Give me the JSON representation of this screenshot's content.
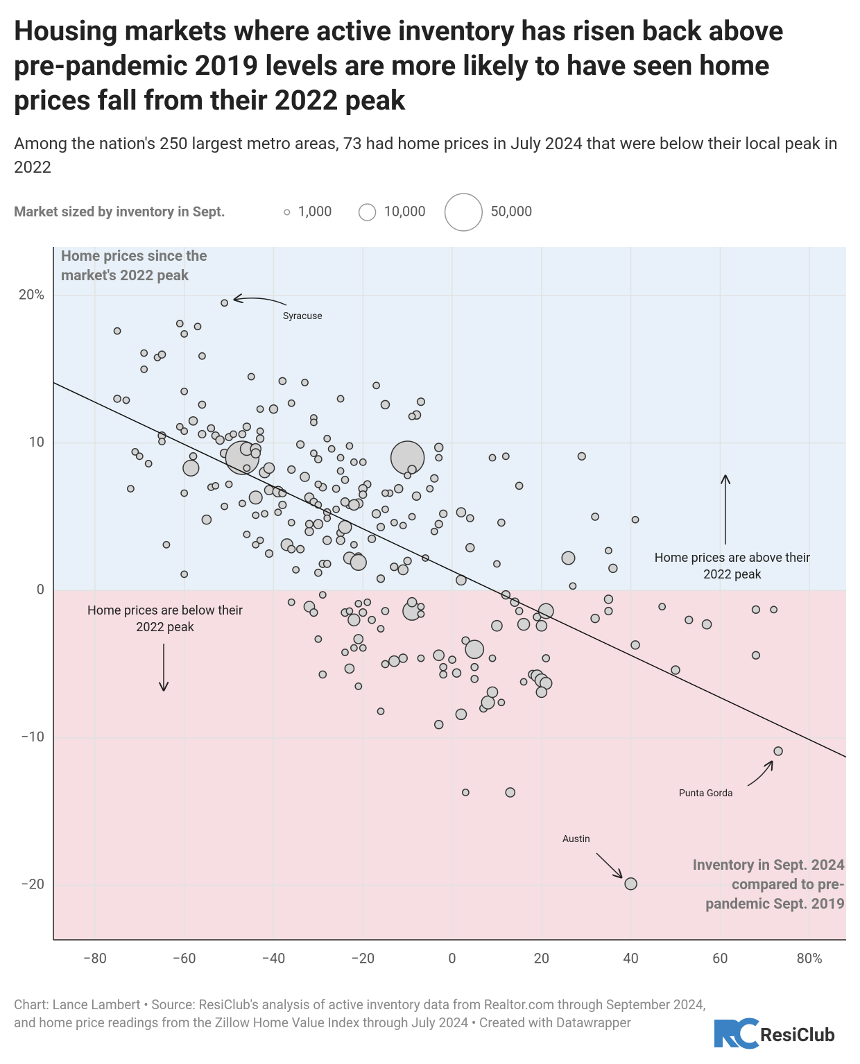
{
  "chart_data": {
    "type": "bubble",
    "title": "Housing markets where active inventory has risen back above pre-pandemic 2019 levels are more likely to have seen home prices fall from their 2022 peak",
    "subtitle": "Among the nation's 250 largest metro areas, 73 had home prices in July 2024 that were below their local peak in 2022",
    "legend_title": "Market sized by inventory in Sept.",
    "legend_sizes": [
      {
        "value": 1000,
        "label": "1,000"
      },
      {
        "value": 10000,
        "label": "10,000"
      },
      {
        "value": 50000,
        "label": "50,000"
      }
    ],
    "y_label": "Home prices since the market's 2022 peak",
    "x_label": "Inventory in Sept. 2024 compared to pre-pandemic Sept. 2019",
    "above_label": "Home prices are above their 2022 peak",
    "below_label": "Home prices are below their 2022 peak",
    "annotations": [
      "Syracuse",
      "Punta Gorda",
      "Austin"
    ],
    "footer": "Chart: Lance Lambert • Source: ResiClub's analysis of active inventory data from Realtor.com through September 2024, and home price readings from the Zillow Home Value Index through July 2024 • Created with Datawrapper",
    "logo": "ResiClub",
    "xlim": [
      -89.3,
      88.2
    ],
    "ylim": [
      -23.7,
      23.3
    ],
    "xticks": [
      {
        "value": -80,
        "label": "−80"
      },
      {
        "value": -60,
        "label": "−60"
      },
      {
        "value": -40,
        "label": "−40"
      },
      {
        "value": -20,
        "label": "−20"
      },
      0,
      20,
      40,
      60,
      {
        "value": 80,
        "label": "80%"
      }
    ],
    "yticks": [
      {
        "value": 20,
        "label": "20%"
      },
      10,
      0,
      {
        "value": -10,
        "label": "−10"
      },
      {
        "value": -20,
        "label": "−20"
      }
    ],
    "grid": true,
    "above_color": "#e8f1f9",
    "below_color": "#f6dee3",
    "color": "#d3d3d3",
    "trendline": {
      "x": [
        -89.3,
        88.2
      ],
      "y": [
        14.1,
        -11.3
      ]
    },
    "points": [
      [
        -51,
        19.5,
        1500
      ],
      [
        -75,
        17.6,
        1500
      ],
      [
        -61,
        18.1,
        1500
      ],
      [
        -60,
        17.4,
        1500
      ],
      [
        -57,
        17.9,
        1500
      ],
      [
        -69,
        16.1,
        1500
      ],
      [
        -66,
        15.8,
        1500
      ],
      [
        -65,
        16,
        1800
      ],
      [
        -69,
        15,
        1500
      ],
      [
        -56,
        15.9,
        1500
      ],
      [
        -75,
        13,
        1800
      ],
      [
        -73,
        12.9,
        1500
      ],
      [
        -60,
        13.5,
        1500
      ],
      [
        -56,
        12.6,
        1800
      ],
      [
        -45,
        14.5,
        1500
      ],
      [
        -38,
        14.2,
        1800
      ],
      [
        -33,
        14.1,
        1500
      ],
      [
        -25,
        13,
        1500
      ],
      [
        -17,
        13.9,
        1500
      ],
      [
        -15,
        12.6,
        2500
      ],
      [
        -7,
        12.8,
        2000
      ],
      [
        -8,
        11.9,
        2500
      ],
      [
        -9,
        11.8,
        1500
      ],
      [
        -58,
        11.5,
        2500
      ],
      [
        -61,
        11.1,
        1500
      ],
      [
        -60,
        10.8,
        1500
      ],
      [
        -54,
        11,
        1800
      ],
      [
        -53,
        10.5,
        2000
      ],
      [
        -52,
        10.2,
        2500
      ],
      [
        -50,
        10.4,
        1800
      ],
      [
        -49,
        10.6,
        1500
      ],
      [
        -47,
        10.6,
        1800
      ],
      [
        -46,
        11.1,
        2000
      ],
      [
        -43,
        12.3,
        1500
      ],
      [
        -40,
        12.3,
        2500
      ],
      [
        -36,
        12.7,
        1500
      ],
      [
        -31,
        11.7,
        1500
      ],
      [
        -31,
        11.4,
        1500
      ],
      [
        -43,
        10.8,
        1500
      ],
      [
        -43,
        10.3,
        2000
      ],
      [
        -65,
        10.5,
        2000
      ],
      [
        -65,
        10.1,
        1500
      ],
      [
        -56,
        10.6,
        2000
      ],
      [
        -51,
        9.3,
        2500
      ],
      [
        -47,
        9,
        40000
      ],
      [
        -46,
        9.6,
        6000
      ],
      [
        -44,
        9.6,
        4000
      ],
      [
        -44,
        9.3,
        3000
      ],
      [
        -58,
        9.1,
        1800
      ],
      [
        -58.5,
        8.3,
        9000
      ],
      [
        -71,
        9.4,
        1500
      ],
      [
        -70,
        9.1,
        1500
      ],
      [
        -68,
        8.6,
        1500
      ],
      [
        -72,
        6.9,
        1500
      ],
      [
        -60,
        6.6,
        1500
      ],
      [
        -54,
        7,
        1500
      ],
      [
        -50,
        7.2,
        1500
      ],
      [
        -46,
        8.3,
        1500
      ],
      [
        -42,
        8,
        4000
      ],
      [
        -41,
        8.3,
        4000
      ],
      [
        -36,
        8.2,
        2000
      ],
      [
        -33,
        7.7,
        3000
      ],
      [
        -30,
        8.9,
        1800
      ],
      [
        -25,
        9,
        1500
      ],
      [
        -20,
        8.7,
        1500
      ],
      [
        -34,
        9.9,
        2000
      ],
      [
        -31,
        9.3,
        1500
      ],
      [
        -28,
        10.3,
        1500
      ],
      [
        -27,
        9.6,
        1500
      ],
      [
        -23,
        9.8,
        1500
      ],
      [
        -22,
        8.7,
        1500
      ],
      [
        -25,
        8.1,
        1500
      ],
      [
        -10,
        9,
        40000
      ],
      [
        -3,
        9.7,
        2500
      ],
      [
        -3,
        9,
        1500
      ],
      [
        -9,
        8.2,
        2500
      ],
      [
        -10,
        7.8,
        1500
      ],
      [
        -4,
        7.6,
        2000
      ],
      [
        -8,
        6.4,
        2500
      ],
      [
        -12,
        6.9,
        2500
      ],
      [
        -14,
        6.6,
        1500
      ],
      [
        -15,
        6.6,
        1500
      ],
      [
        -5,
        6.9,
        1500
      ],
      [
        -47,
        5.9,
        1500
      ],
      [
        -44,
        6.3,
        6000
      ],
      [
        -41,
        6.8,
        3000
      ],
      [
        -39,
        6.7,
        4000
      ],
      [
        -38,
        6.6,
        2000
      ],
      [
        -38,
        5.8,
        2000
      ],
      [
        -39,
        5.3,
        1500
      ],
      [
        -44,
        5.1,
        1500
      ],
      [
        -42,
        5.2,
        1500
      ],
      [
        -51,
        5.7,
        1500
      ],
      [
        -53,
        7.1,
        1500
      ],
      [
        -55,
        4.8,
        3000
      ],
      [
        -32,
        6.3,
        3000
      ],
      [
        -31,
        6,
        2000
      ],
      [
        -30,
        5.8,
        1500
      ],
      [
        -29,
        7,
        2000
      ],
      [
        -30,
        7.2,
        1500
      ],
      [
        -24,
        7.5,
        1800
      ],
      [
        -26,
        6.9,
        1800
      ],
      [
        -19,
        7.2,
        1800
      ],
      [
        -20,
        6.9,
        2500
      ],
      [
        -23,
        5.8,
        2000
      ],
      [
        -20,
        6.5,
        2000
      ],
      [
        -24,
        6,
        2500
      ],
      [
        -21,
        5.9,
        3000
      ],
      [
        -22,
        5.8,
        4000
      ],
      [
        -26,
        5.5,
        1500
      ],
      [
        -28,
        5.3,
        1800
      ],
      [
        -30,
        4.5,
        3000
      ],
      [
        -28,
        4.9,
        1500
      ],
      [
        -36,
        4.6,
        1500
      ],
      [
        -46,
        3.8,
        1500
      ],
      [
        -43,
        3.4,
        1500
      ],
      [
        -44,
        3.1,
        1500
      ],
      [
        -41,
        2.5,
        2000
      ],
      [
        -37,
        3.1,
        5000
      ],
      [
        -36,
        2.8,
        2000
      ],
      [
        -34,
        2.8,
        2000
      ],
      [
        -32,
        4,
        2500
      ],
      [
        -32,
        4.5,
        2000
      ],
      [
        -28,
        3.4,
        2500
      ],
      [
        -25,
        3.9,
        2000
      ],
      [
        -24,
        4.3,
        6000
      ],
      [
        -25,
        3.4,
        2500
      ],
      [
        -22,
        3.1,
        1500
      ],
      [
        -21,
        2.3,
        2000
      ],
      [
        -23,
        2.2,
        5000
      ],
      [
        -21,
        1.9,
        9000
      ],
      [
        -18,
        3.5,
        2000
      ],
      [
        -16,
        4.3,
        2000
      ],
      [
        -15,
        5.5,
        1500
      ],
      [
        -13,
        4.6,
        1500
      ],
      [
        -11,
        4.4,
        1500
      ],
      [
        -9,
        5,
        1500
      ],
      [
        -17,
        5.2,
        2500
      ],
      [
        -13,
        1.6,
        2000
      ],
      [
        -11,
        1.4,
        3500
      ],
      [
        -10,
        2,
        2000
      ],
      [
        -6,
        2.2,
        1500
      ],
      [
        -4,
        4,
        1500
      ],
      [
        -3,
        4.5,
        2000
      ],
      [
        -2,
        5.2,
        2000
      ],
      [
        2,
        5.3,
        3000
      ],
      [
        4,
        4.9,
        1800
      ],
      [
        4,
        2.9,
        2500
      ],
      [
        2,
        0.7,
        3500
      ],
      [
        -16,
        0.8,
        2000
      ],
      [
        -29,
        1.8,
        1800
      ],
      [
        -28,
        1.8,
        1800
      ],
      [
        -30,
        1.2,
        1800
      ],
      [
        -35,
        1.4,
        1500
      ],
      [
        -64,
        3.1,
        1500
      ],
      [
        -60,
        1.1,
        1500
      ],
      [
        9,
        9,
        1500
      ],
      [
        12,
        9.1,
        1500
      ],
      [
        15,
        7.1,
        1800
      ],
      [
        11,
        4.6,
        1800
      ],
      [
        10,
        1.8,
        1500
      ],
      [
        26,
        2.2,
        6000
      ],
      [
        29,
        9.1,
        2000
      ],
      [
        32,
        5,
        1800
      ],
      [
        35,
        2.7,
        1500
      ],
      [
        36,
        1.5,
        2500
      ],
      [
        41,
        4.8,
        1500
      ],
      [
        27,
        0.3,
        1500
      ],
      [
        -36,
        -0.8,
        1500
      ],
      [
        -32,
        -1.1,
        4000
      ],
      [
        -31,
        -1.5,
        2000
      ],
      [
        -29,
        -0.3,
        1500
      ],
      [
        -24,
        -1.5,
        2000
      ],
      [
        -23,
        -1.4,
        1500
      ],
      [
        -22,
        -2,
        5000
      ],
      [
        -21,
        -0.9,
        1500
      ],
      [
        -19,
        -0.8,
        1500
      ],
      [
        -18,
        -2,
        1800
      ],
      [
        -15,
        -1.4,
        1800
      ],
      [
        -20,
        -1.5,
        2000
      ],
      [
        -21,
        -3.3,
        3000
      ],
      [
        -20,
        -3.9,
        1500
      ],
      [
        -22,
        -3.9,
        1500
      ],
      [
        -24,
        -4.2,
        1500
      ],
      [
        -23,
        -5.3,
        3000
      ],
      [
        -21,
        -6.5,
        1500
      ],
      [
        -16,
        -2.6,
        1500
      ],
      [
        -15,
        -5,
        1800
      ],
      [
        -13,
        -4.8,
        4000
      ],
      [
        -11,
        -4.6,
        2500
      ],
      [
        -7,
        -4.6,
        1500
      ],
      [
        -30,
        -3.3,
        1500
      ],
      [
        -29,
        -5.7,
        1800
      ],
      [
        -16,
        -8.2,
        1500
      ],
      [
        -9,
        -1.4,
        12000
      ],
      [
        -9,
        -0.8,
        3000
      ],
      [
        -7,
        -1.6,
        1500
      ],
      [
        -7,
        -1.1,
        1500
      ],
      [
        -3,
        -4.4,
        4000
      ],
      [
        -2,
        -5.2,
        1800
      ],
      [
        -2,
        -5.7,
        1800
      ],
      [
        0,
        -4.7,
        1800
      ],
      [
        1,
        -5.6,
        2500
      ],
      [
        3,
        -3.4,
        2000
      ],
      [
        5,
        -4,
        12000
      ],
      [
        5,
        -5.2,
        1800
      ],
      [
        5,
        -6,
        1800
      ],
      [
        2,
        -8.4,
        4000
      ],
      [
        -3,
        -9.1,
        2500
      ],
      [
        7,
        -8,
        2000
      ],
      [
        8,
        -7.6,
        6000
      ],
      [
        9,
        -6.9,
        4000
      ],
      [
        9,
        -4.6,
        1500
      ],
      [
        11,
        -7.6,
        1500
      ],
      [
        10,
        -2.4,
        4000
      ],
      [
        12,
        -0.3,
        2500
      ],
      [
        14,
        -0.8,
        2500
      ],
      [
        15,
        -1.4,
        1800
      ],
      [
        16,
        -2.3,
        5000
      ],
      [
        19,
        -1.8,
        2000
      ],
      [
        20,
        -2.4,
        4000
      ],
      [
        21,
        -1.4,
        8000
      ],
      [
        21,
        -4.6,
        1800
      ],
      [
        16,
        -6.2,
        1500
      ],
      [
        18,
        -5.7,
        2500
      ],
      [
        19,
        -5.8,
        5000
      ],
      [
        20,
        -6.1,
        6000
      ],
      [
        21,
        -6.3,
        5000
      ],
      [
        20,
        -6.9,
        4000
      ],
      [
        3,
        -13.7,
        1500
      ],
      [
        13,
        -13.7,
        3000
      ],
      [
        40,
        -19.9,
        5000
      ],
      [
        73,
        -10.9,
        2500
      ],
      [
        41,
        -3.7,
        2500
      ],
      [
        32,
        -1.9,
        2500
      ],
      [
        35,
        -0.6,
        2500
      ],
      [
        35,
        -1.4,
        2000
      ],
      [
        47,
        -1.1,
        1500
      ],
      [
        50,
        -5.4,
        2500
      ],
      [
        53,
        -2,
        2000
      ],
      [
        57,
        -2.3,
        3000
      ],
      [
        68,
        -1.3,
        2000
      ],
      [
        72,
        -1.3,
        1500
      ],
      [
        68,
        -4.4,
        2000
      ]
    ]
  }
}
